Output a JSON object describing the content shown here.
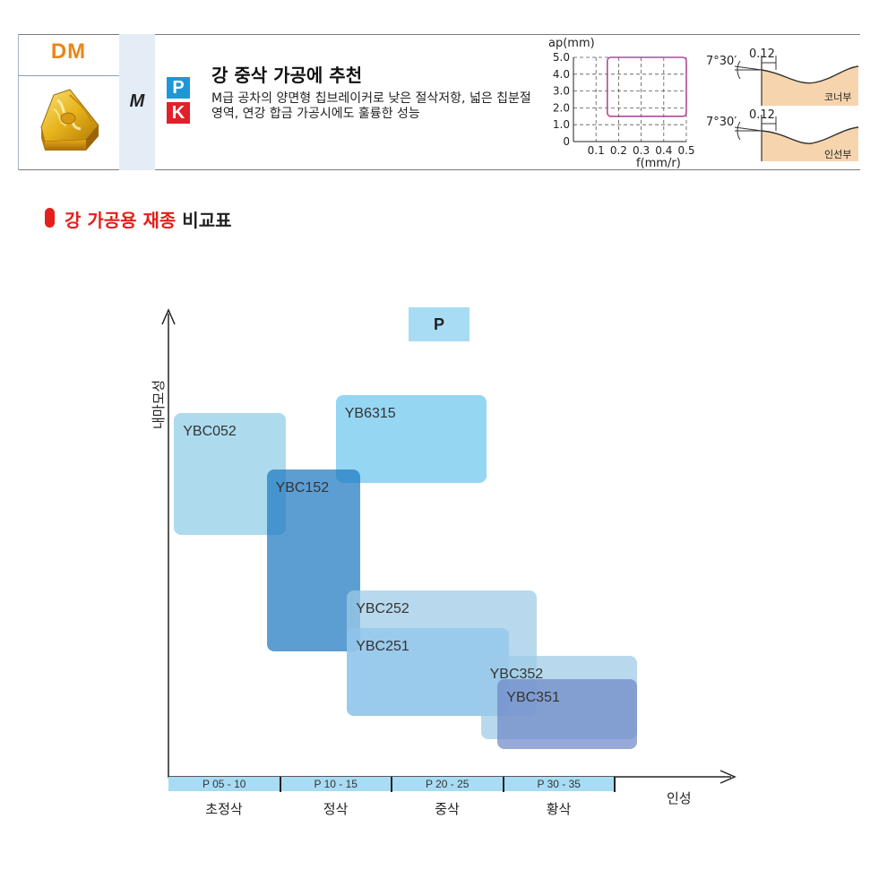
{
  "header": {
    "code": "DM",
    "material_class": "M",
    "iso_badges": [
      "P",
      "K"
    ],
    "title": "강 중삭 가공에 추천",
    "description": "M급 공차의 양면형 칩브레이커로 낮은 절삭저항, 넓은 칩분절 영역, 연강 합금 가공시에도 훌륭한 성능",
    "colors": {
      "code": "#e8861a",
      "p_badge": "#1e97d8",
      "k_badge": "#e2202a"
    }
  },
  "range_chart": {
    "ylabel": "ap(mm)",
    "xlabel": "f(mm/r)",
    "y_ticks": [
      "5.0",
      "4.0",
      "3.0",
      "2.0",
      "1.0",
      "0"
    ],
    "x_ticks": [
      "0.1",
      "0.2",
      "0.3",
      "0.4",
      "0.5"
    ],
    "region": {
      "f_min": 0.15,
      "f_max": 0.5,
      "ap_min": 1.5,
      "ap_max": 5.0
    }
  },
  "edge_profiles": [
    {
      "angle": "7°30′",
      "land": "0.12",
      "label": "코너부"
    },
    {
      "angle": "7°30′",
      "land": "0.12",
      "label": "인선부"
    }
  ],
  "section": {
    "title_highlight": "강 가공용 재종",
    "title_rest": "비교표"
  },
  "chart_data": {
    "type": "grade-map",
    "badge": "P",
    "ylabel": "내마모성",
    "xlabel": "인성",
    "ranges": [
      "P 05 - 10",
      "P 10 - 15",
      "P 20 - 25",
      "P 30 - 35"
    ],
    "stages": [
      "초정삭",
      "정삭",
      "중삭",
      "황삭"
    ],
    "grades": [
      {
        "name": "YBC052",
        "x0": 0.05,
        "x1": 1.05,
        "y0": 0.52,
        "y1": 0.78,
        "color": "#8ecde6"
      },
      {
        "name": "YB6315",
        "x0": 1.5,
        "x1": 2.85,
        "y0": 0.63,
        "y1": 0.82,
        "color": "#6cc6ef"
      },
      {
        "name": "YBC152",
        "x0": 0.88,
        "x1": 1.72,
        "y0": 0.27,
        "y1": 0.66,
        "color": "#1f79c0"
      },
      {
        "name": "YBC252",
        "x0": 1.6,
        "x1": 3.3,
        "y0": 0.13,
        "y1": 0.4,
        "color": "#9ccbe6"
      },
      {
        "name": "YBC251",
        "x0": 1.6,
        "x1": 3.05,
        "y0": 0.13,
        "y1": 0.32,
        "color": "#8fc4ec"
      },
      {
        "name": "YBC352",
        "x0": 2.8,
        "x1": 4.2,
        "y0": 0.08,
        "y1": 0.26,
        "color": "#9ccbe6"
      },
      {
        "name": "YBC351",
        "x0": 2.95,
        "x1": 4.2,
        "y0": 0.06,
        "y1": 0.21,
        "color": "#6f88c8"
      }
    ]
  }
}
